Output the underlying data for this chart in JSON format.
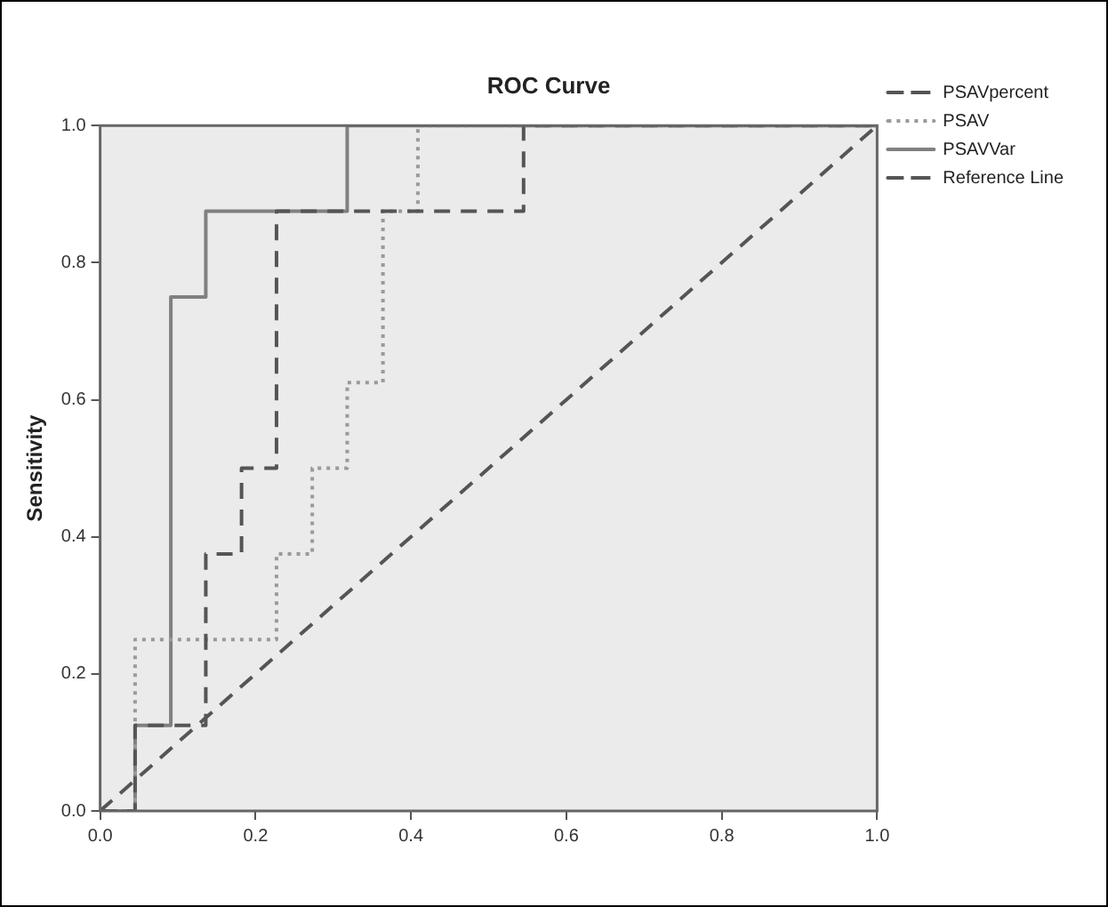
{
  "chart_data": {
    "type": "line",
    "title": "ROC Curve",
    "ylabel": "Sensitivity",
    "xlim": [
      0,
      1
    ],
    "ylim": [
      0,
      1
    ],
    "xticks": [
      {
        "value": 0,
        "label": "0.0"
      },
      {
        "value": 0.2,
        "label": "0.2"
      },
      {
        "value": 0.4,
        "label": "0.4"
      },
      {
        "value": 0.6,
        "label": "0.6"
      },
      {
        "value": 0.8,
        "label": "0.8"
      },
      {
        "value": 1,
        "label": "1.0"
      }
    ],
    "yticks": [
      {
        "value": 0,
        "label": "0.0"
      },
      {
        "value": 0.2,
        "label": "0.2"
      },
      {
        "value": 0.4,
        "label": "0.4"
      },
      {
        "value": 0.6,
        "label": "0.6"
      },
      {
        "value": 0.8,
        "label": "0.8"
      },
      {
        "value": 1,
        "label": "1.0"
      }
    ],
    "grid": false,
    "legend": "right",
    "marker": "none",
    "series": [
      {
        "name": "PSAVpercent",
        "color": "#555555",
        "line_style": "dashed",
        "x": [
          0,
          0.045,
          0.045,
          0.136,
          0.136,
          0.182,
          0.182,
          0.227,
          0.227,
          0.545,
          0.545,
          1
        ],
        "values": [
          0,
          0,
          0.125,
          0.125,
          0.375,
          0.375,
          0.5,
          0.5,
          0.875,
          0.875,
          1,
          1
        ]
      },
      {
        "name": "PSAV",
        "color": "#9a9a9a",
        "line_style": "dotted",
        "x": [
          0,
          0.045,
          0.045,
          0.227,
          0.227,
          0.273,
          0.273,
          0.318,
          0.318,
          0.364,
          0.364,
          0.409,
          0.409,
          1
        ],
        "values": [
          0,
          0,
          0.25,
          0.25,
          0.375,
          0.375,
          0.5,
          0.5,
          0.625,
          0.625,
          0.875,
          0.875,
          1,
          1
        ]
      },
      {
        "name": "PSAVVar",
        "color": "#808080",
        "line_style": "solid",
        "x": [
          0,
          0.045,
          0.045,
          0.091,
          0.091,
          0.136,
          0.136,
          0.318,
          0.318,
          1
        ],
        "values": [
          0,
          0,
          0.125,
          0.125,
          0.75,
          0.75,
          0.875,
          0.875,
          1,
          1
        ]
      },
      {
        "name": "Reference Line",
        "color": "#555555",
        "line_style": "dashed",
        "x": [
          0,
          1
        ],
        "values": [
          0,
          1
        ]
      }
    ]
  }
}
